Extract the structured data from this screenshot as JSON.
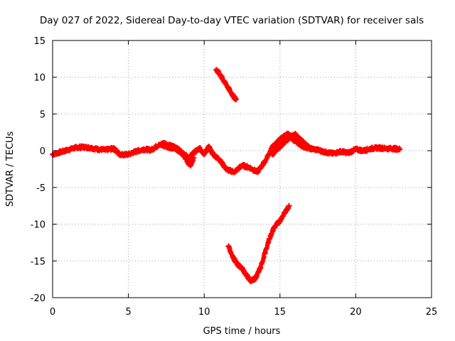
{
  "chart_data": {
    "type": "scatter",
    "title": "Day 027 of 2022, Sidereal Day-to-day VTEC variation (SDTVAR) for receiver sals",
    "xlabel": "GPS time / hours",
    "ylabel": "SDTVAR / TECUs",
    "xlim": [
      0,
      25
    ],
    "ylim": [
      -20,
      15
    ],
    "xticks": [
      0,
      5,
      10,
      15,
      20,
      25
    ],
    "yticks": [
      -20,
      -15,
      -10,
      -5,
      0,
      5,
      10,
      15
    ],
    "grid": true,
    "legend": "none",
    "series": [
      {
        "color": "#ff0000",
        "segments": [
          [
            [
              0.0,
              -0.5
            ],
            [
              0.5,
              -0.2
            ],
            [
              1.0,
              0.1
            ],
            [
              1.5,
              0.4
            ],
            [
              2.0,
              0.5
            ],
            [
              2.5,
              0.4
            ],
            [
              3.0,
              0.2
            ],
            [
              3.5,
              0.1
            ],
            [
              4.0,
              0.3
            ],
            [
              4.2,
              0.0
            ],
            [
              4.5,
              -0.6
            ],
            [
              5.0,
              -0.5
            ],
            [
              5.5,
              -0.1
            ],
            [
              6.0,
              0.2
            ],
            [
              6.5,
              0.1
            ],
            [
              7.0,
              0.8
            ],
            [
              7.5,
              0.6
            ],
            [
              8.0,
              0.3
            ],
            [
              8.5,
              -0.2
            ],
            [
              9.0,
              -1.0
            ],
            [
              9.3,
              -0.3
            ],
            [
              9.7,
              0.3
            ],
            [
              10.0,
              -0.4
            ],
            [
              10.3,
              0.5
            ],
            [
              10.6,
              -0.5
            ],
            [
              11.0,
              -1.2
            ],
            [
              11.5,
              -2.6
            ],
            [
              12.0,
              -2.9
            ],
            [
              12.5,
              -2.0
            ],
            [
              13.0,
              -2.3
            ],
            [
              13.5,
              -2.9
            ],
            [
              14.0,
              -1.5
            ],
            [
              14.5,
              0.5
            ],
            [
              15.0,
              1.5
            ],
            [
              15.5,
              2.3
            ],
            [
              16.0,
              1.3
            ],
            [
              16.5,
              0.6
            ],
            [
              17.0,
              0.3
            ],
            [
              17.5,
              0.1
            ],
            [
              18.0,
              -0.2
            ],
            [
              18.5,
              -0.4
            ],
            [
              19.0,
              -0.1
            ],
            [
              19.5,
              -0.3
            ],
            [
              20.0,
              0.2
            ],
            [
              20.5,
              0.0
            ],
            [
              21.0,
              0.3
            ],
            [
              21.5,
              0.4
            ],
            [
              22.0,
              0.3
            ],
            [
              22.5,
              0.3
            ],
            [
              22.9,
              0.2
            ]
          ],
          [
            [
              10.8,
              11.0
            ],
            [
              11.0,
              10.5
            ],
            [
              11.3,
              9.5
            ],
            [
              11.6,
              8.5
            ],
            [
              11.9,
              7.5
            ],
            [
              12.1,
              7.0
            ]
          ],
          [
            [
              11.6,
              -13.0
            ],
            [
              11.9,
              -14.5
            ],
            [
              12.2,
              -15.5
            ],
            [
              12.5,
              -16.0
            ],
            [
              12.8,
              -17.0
            ],
            [
              13.1,
              -17.7
            ],
            [
              13.4,
              -17.3
            ],
            [
              13.7,
              -16.0
            ],
            [
              14.0,
              -14.0
            ],
            [
              14.3,
              -12.0
            ],
            [
              14.6,
              -10.5
            ],
            [
              15.0,
              -9.5
            ],
            [
              15.3,
              -8.5
            ],
            [
              15.6,
              -7.5
            ]
          ],
          [
            [
              14.5,
              -0.5
            ],
            [
              14.8,
              0.2
            ],
            [
              15.1,
              0.8
            ],
            [
              15.4,
              1.4
            ],
            [
              15.7,
              1.9
            ],
            [
              16.0,
              2.2
            ],
            [
              16.3,
              1.6
            ],
            [
              16.6,
              1.0
            ],
            [
              17.0,
              0.3
            ]
          ],
          [
            [
              7.2,
              1.0
            ],
            [
              7.6,
              0.8
            ],
            [
              8.0,
              0.5
            ],
            [
              8.3,
              0.2
            ],
            [
              8.6,
              -0.5
            ],
            [
              8.9,
              -1.5
            ],
            [
              9.1,
              -2.0
            ],
            [
              9.3,
              -1.0
            ]
          ]
        ]
      }
    ]
  }
}
